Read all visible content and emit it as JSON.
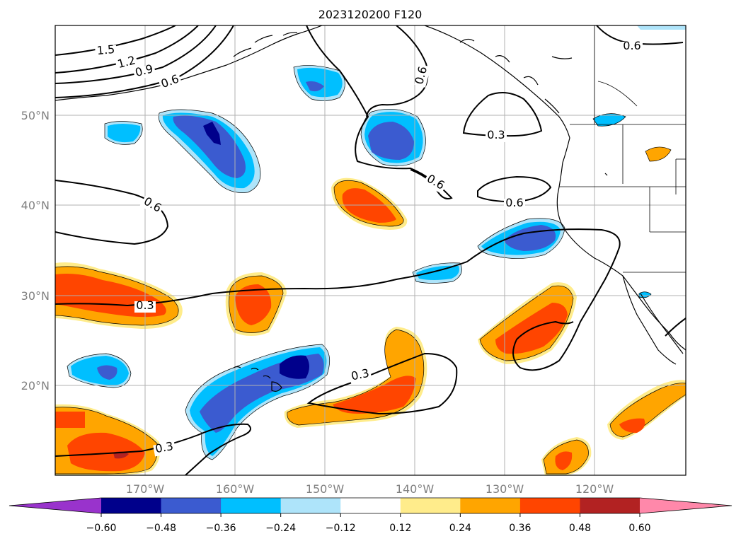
{
  "title": "2023120200 F120",
  "lat_labels": [
    "50°N",
    "40°N",
    "30°N",
    "20°N"
  ],
  "lon_labels": [
    "170°W",
    "160°W",
    "150°W",
    "140°W",
    "130°W",
    "120°W"
  ],
  "contour_labels": [
    "1.5",
    "1.2",
    "0.9",
    "0.6",
    "0.6",
    "0.6",
    "0.6",
    "0.3",
    "0.6",
    "0.6",
    "0.3",
    "0.3",
    "0.3"
  ],
  "colorbar": {
    "tick_labels": [
      "−0.60",
      "−0.48",
      "−0.36",
      "−0.24",
      "−0.12",
      "0.12",
      "0.24",
      "0.36",
      "0.48",
      "0.60"
    ],
    "colors": [
      "#9933cc",
      "#00008b",
      "#3b5bd0",
      "#00bfff",
      "#aee4fa",
      "#ffffff",
      "#ffec8b",
      "#ffa500",
      "#ff4500",
      "#b22222",
      "#ff88aa"
    ]
  },
  "colors": {
    "dark_blue": "#00008b",
    "blue": "#3b5bd0",
    "sky": "#00bfff",
    "light_sky": "#aee4fa",
    "yellow": "#ffec8b",
    "orange": "#ffa500",
    "red_orange": "#ff4500"
  }
}
